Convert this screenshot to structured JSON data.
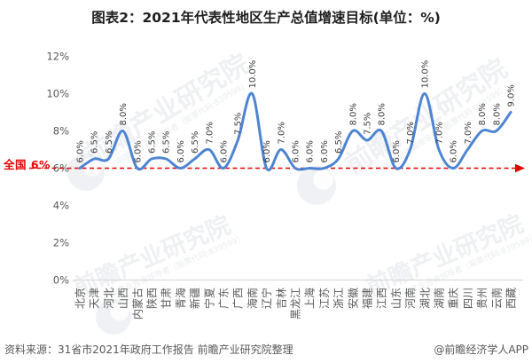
{
  "title": "图表2：2021年代表性地区生产总值增速目标(单位：%)",
  "national_line": {
    "label": "全国 6%",
    "value": 6
  },
  "source": {
    "left": "资料来源：31省市2021年政府工作报告 前瞻产业研究院整理",
    "right": "@前瞻经济学人APP"
  },
  "watermark": {
    "text": "前瞻产业研究院",
    "subtext": "中国产业咨询领导者（股票代码:839599）",
    "logo": "qianzhan-circle-logo"
  },
  "colors": {
    "line": "#4d85d3",
    "reference": "#e60000",
    "axis_text": "#595959",
    "data_label_text": "#3d3d3d",
    "axis_line": "#d6d6d6",
    "title_text": "#1f1f1f",
    "source_text": "#595959",
    "watermark": "#9aa4b2"
  },
  "chart_data": {
    "type": "line",
    "title": "图表2：2021年代表性地区生产总值增速目标(单位：%)",
    "categories": [
      "北京",
      "天津",
      "河北",
      "山西",
      "内蒙古",
      "陕西",
      "甘肃",
      "青海",
      "新疆",
      "宁夏",
      "广东",
      "广西",
      "海南",
      "辽宁",
      "吉林",
      "黑龙江",
      "上海",
      "江苏",
      "浙江",
      "安徽",
      "福建",
      "江西",
      "山东",
      "河南",
      "湖北",
      "湖南",
      "重庆",
      "四川",
      "贵州",
      "云南",
      "西藏"
    ],
    "values": [
      6.0,
      6.5,
      6.5,
      8.0,
      6.0,
      6.5,
      6.5,
      6.0,
      6.5,
      7.0,
      6.0,
      7.5,
      10.0,
      6.0,
      7.0,
      6.0,
      6.0,
      6.0,
      6.5,
      8.0,
      7.5,
      8.0,
      6.0,
      7.0,
      10.0,
      7.0,
      6.0,
      7.0,
      8.0,
      8.0,
      9.0
    ],
    "xlabel": "",
    "ylabel": "",
    "ylim": [
      0,
      12
    ],
    "yticks": [
      0,
      2,
      4,
      6,
      8,
      10,
      12
    ],
    "ytick_suffix": "%",
    "grid": false,
    "legend": false,
    "data_label_format": "one-decimal-percent",
    "reference_line": {
      "value": 6,
      "label": "全国 6%",
      "style": "red-dashed-arrow"
    }
  }
}
